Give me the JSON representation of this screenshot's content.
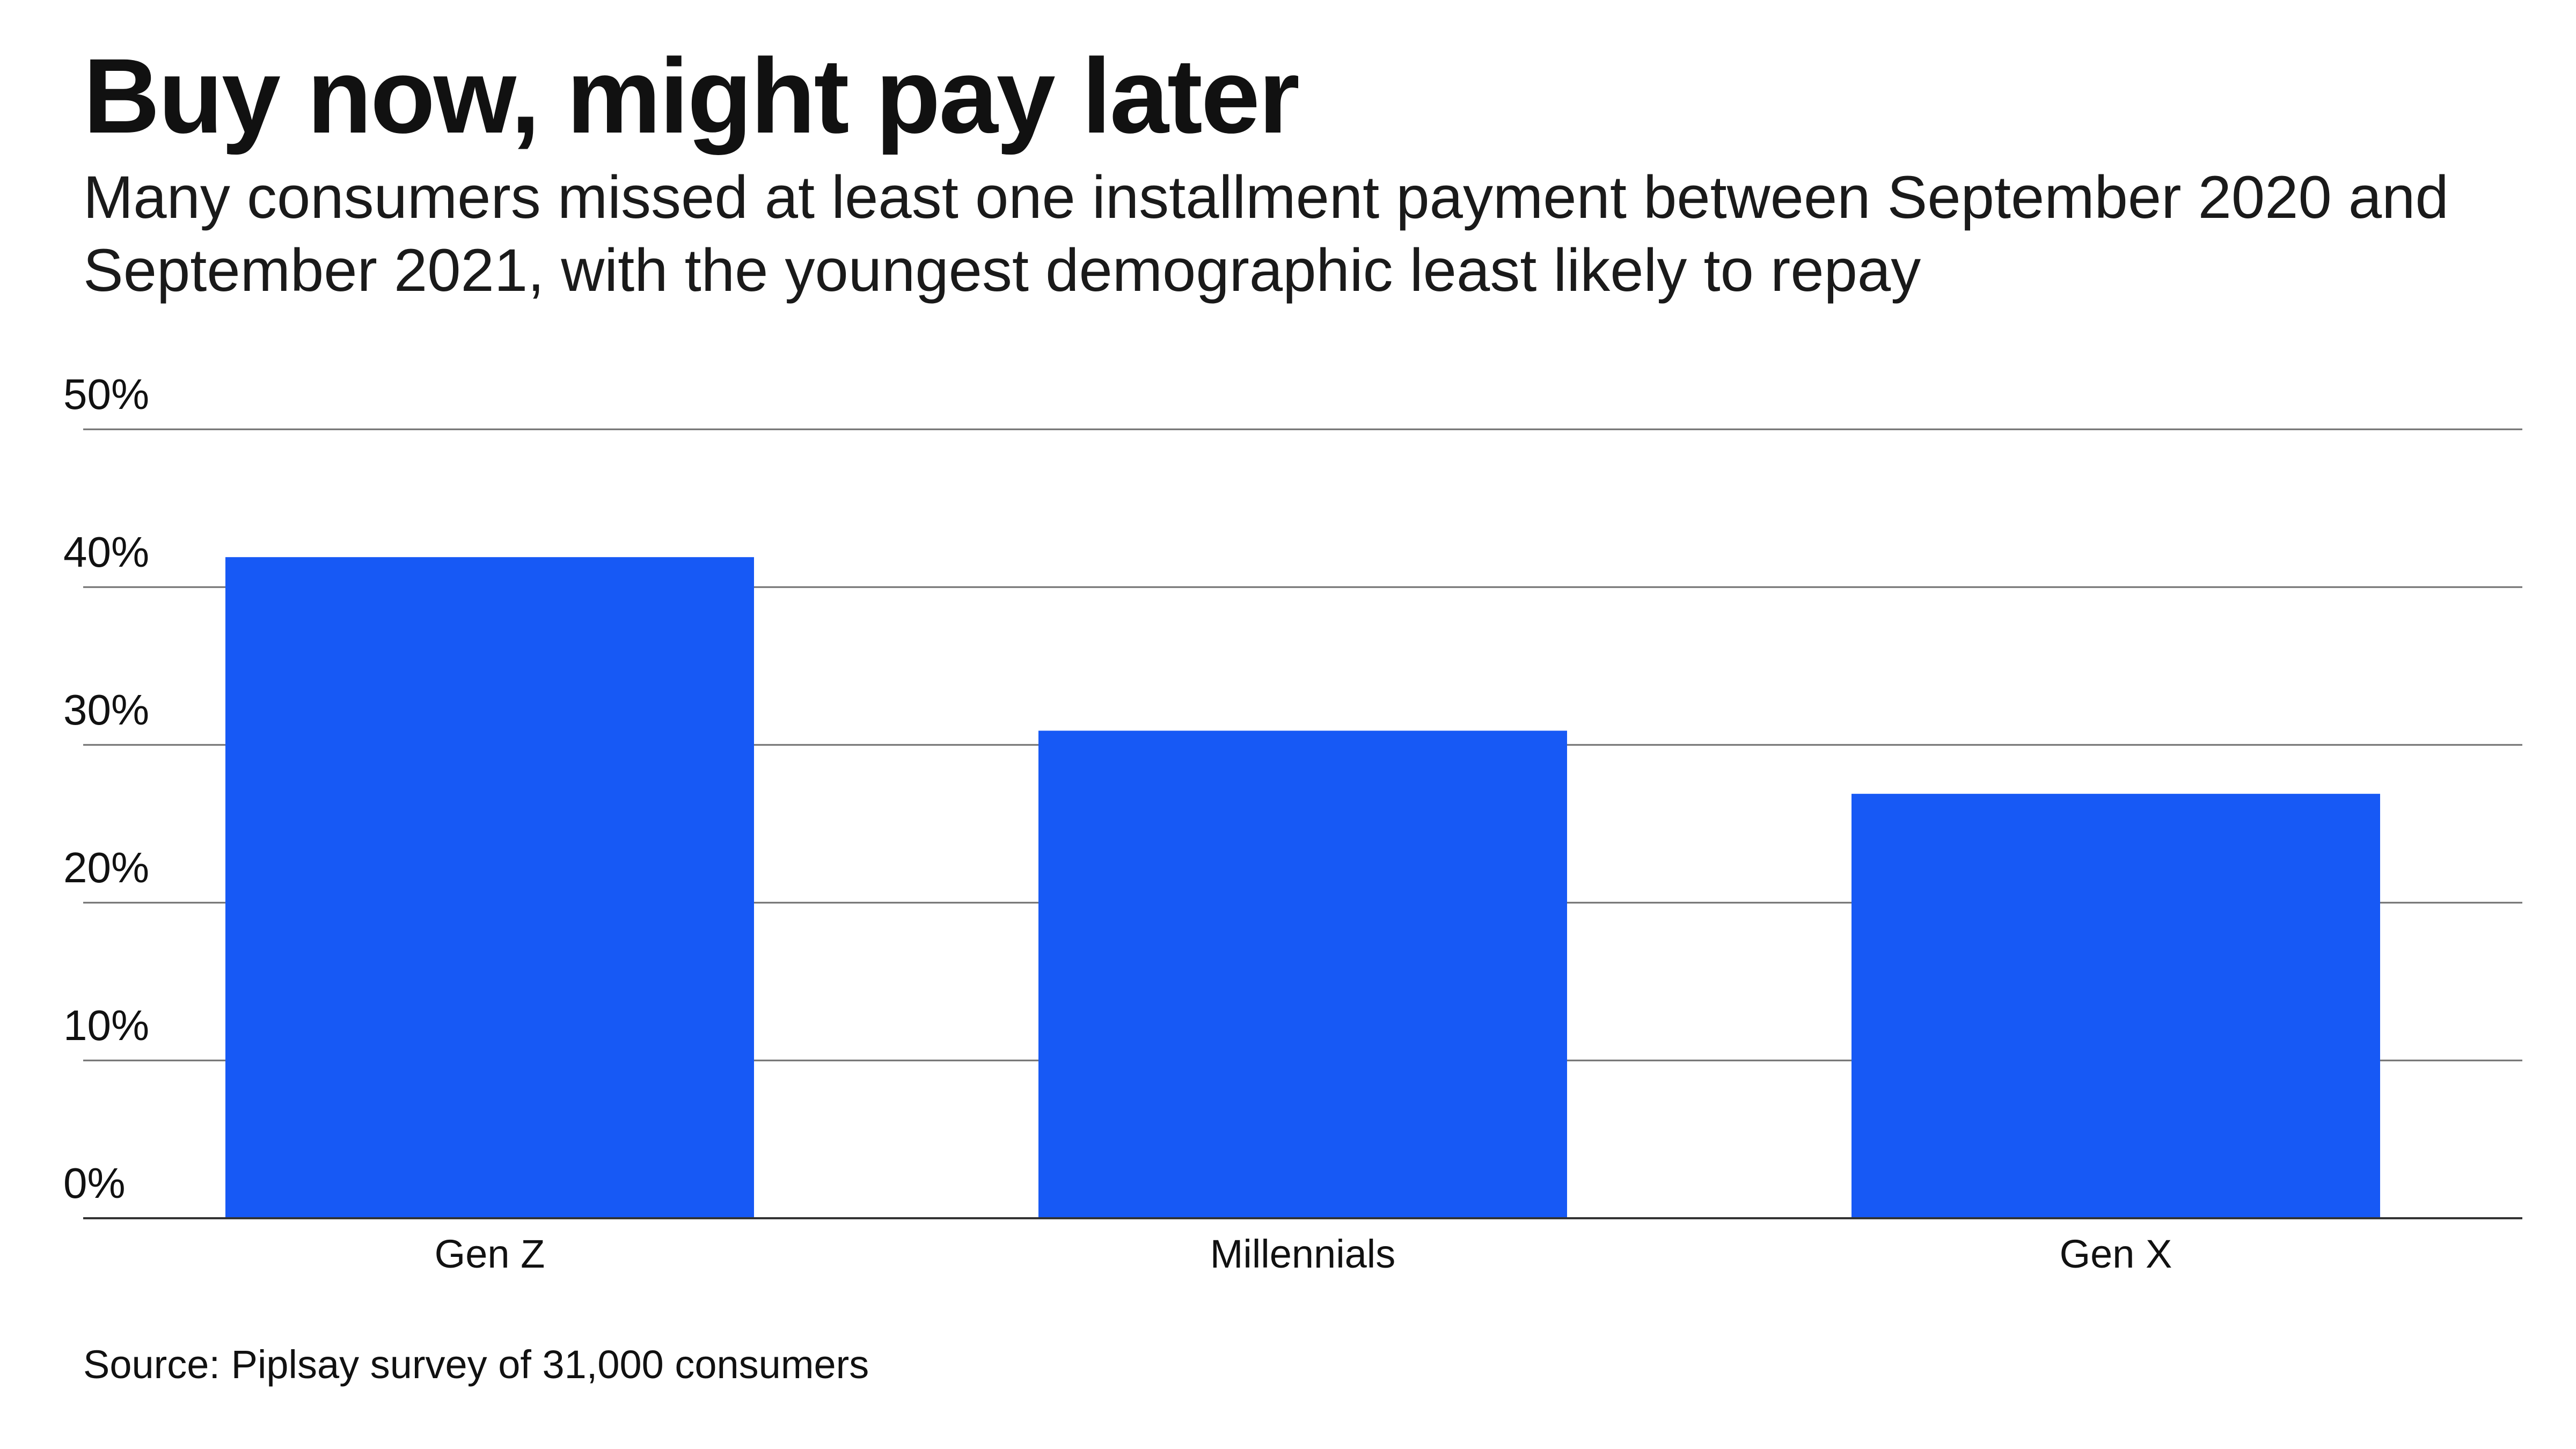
{
  "chart_data": {
    "type": "bar",
    "title": "Buy now, might pay later",
    "subtitle": "Many consumers missed at least one installment payment between September 2020 and September 2021, with the youngest demographic least likely to repay",
    "categories": [
      "Gen Z",
      "Millennials",
      "Gen X"
    ],
    "values": [
      41.9,
      30.9,
      26.9
    ],
    "ylim": [
      0,
      50
    ],
    "yticks": [
      0,
      10,
      20,
      30,
      40,
      50
    ],
    "ytick_labels": [
      "0%",
      "10%",
      "20%",
      "30%",
      "40%",
      "50%"
    ],
    "grid": true,
    "bar_color": "#1759f5",
    "source": "Source: Piplsay survey of 31,000 consumers"
  }
}
